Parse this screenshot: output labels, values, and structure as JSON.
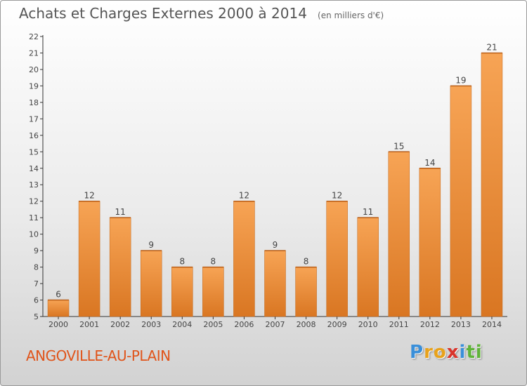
{
  "chart_data": {
    "type": "bar",
    "title": "Achats et Charges Externes 2000 à 2014",
    "subtitle": "(en milliers d'€)",
    "categories": [
      "2000",
      "2001",
      "2002",
      "2003",
      "2004",
      "2005",
      "2006",
      "2007",
      "2008",
      "2009",
      "2010",
      "2011",
      "2012",
      "2013",
      "2014"
    ],
    "values": [
      6,
      12,
      11,
      9,
      8,
      8,
      12,
      9,
      8,
      12,
      11,
      15,
      14,
      19,
      21
    ],
    "ylim": [
      5,
      22
    ],
    "yticks": [
      5,
      6,
      7,
      8,
      9,
      10,
      11,
      12,
      13,
      14,
      15,
      16,
      17,
      18,
      19,
      20,
      21,
      22
    ],
    "grid": false,
    "xlabel": "",
    "ylabel": "",
    "bar_color_light": "#f7a455",
    "bar_color_dark": "#d97622"
  },
  "footer": {
    "commune": "ANGOVILLE-AU-PLAIN",
    "commune_color": "#e0541a",
    "brand": {
      "letters": [
        "P",
        "r",
        "o",
        "x",
        "i",
        "t",
        "i"
      ],
      "colors": [
        "#3a8fd9",
        "#e8a21b",
        "#e8a21b",
        "#d9342b",
        "#3a8fd9",
        "#5fb33a",
        "#5fb33a"
      ]
    }
  }
}
